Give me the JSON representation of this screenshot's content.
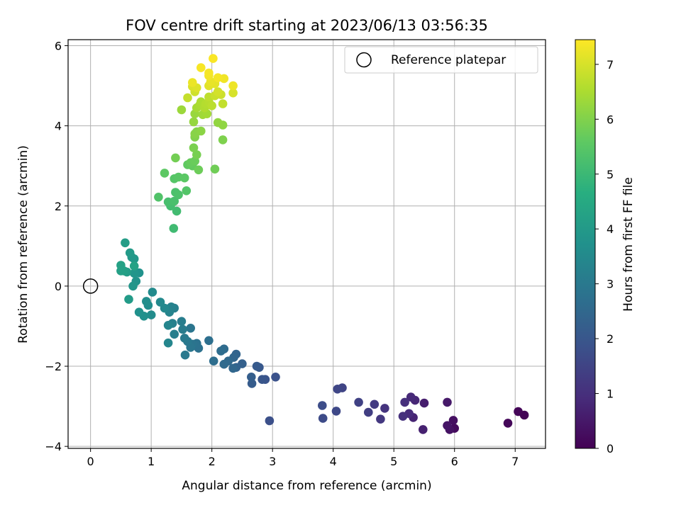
{
  "chart_data": {
    "type": "scatter",
    "title": "FOV centre drift starting at 2023/06/13 03:56:35",
    "xlabel": "Angular distance from reference (arcmin)",
    "ylabel": "Rotation from reference (arcmin)",
    "xlim": [
      -0.37,
      7.5
    ],
    "ylim": [
      -4.05,
      6.15
    ],
    "x_ticks": [
      0,
      1,
      2,
      3,
      4,
      5,
      6,
      7
    ],
    "y_ticks": [
      -4,
      -2,
      0,
      2,
      4,
      6
    ],
    "grid": true,
    "legend": {
      "placement": "top-right",
      "entries": [
        "Reference platepar"
      ]
    },
    "reference_point": {
      "x": 0,
      "y": 0,
      "marker": "open-circle",
      "label": "Reference platepar"
    },
    "colorbar": {
      "label": "Hours from first FF file",
      "min": 0,
      "max": 7.45,
      "ticks": [
        0,
        1,
        2,
        3,
        4,
        5,
        6,
        7
      ],
      "colormap": "viridis"
    },
    "points": [
      [
        7.15,
        -3.22,
        0.04
      ],
      [
        7.05,
        -3.13,
        0.08
      ],
      [
        6.88,
        -3.42,
        0.12
      ],
      [
        6.0,
        -3.55,
        0.22
      ],
      [
        5.98,
        -3.35,
        0.3
      ],
      [
        5.92,
        -3.58,
        0.36
      ],
      [
        5.88,
        -3.48,
        0.42
      ],
      [
        5.88,
        -2.9,
        0.5
      ],
      [
        5.5,
        -2.92,
        0.6
      ],
      [
        5.48,
        -3.58,
        0.68
      ],
      [
        5.32,
        -3.28,
        0.74
      ],
      [
        5.35,
        -2.85,
        0.8
      ],
      [
        5.28,
        -2.77,
        0.86
      ],
      [
        5.25,
        -3.18,
        0.92
      ],
      [
        5.18,
        -2.9,
        0.98
      ],
      [
        5.15,
        -3.25,
        1.04
      ],
      [
        4.85,
        -3.05,
        1.12
      ],
      [
        4.78,
        -3.32,
        1.2
      ],
      [
        4.68,
        -2.95,
        1.28
      ],
      [
        4.58,
        -3.15,
        1.36
      ],
      [
        4.42,
        -2.9,
        1.44
      ],
      [
        4.15,
        -2.54,
        1.5
      ],
      [
        4.07,
        -2.57,
        1.56
      ],
      [
        4.05,
        -3.12,
        1.62
      ],
      [
        3.83,
        -3.3,
        1.68
      ],
      [
        3.82,
        -2.98,
        1.74
      ],
      [
        2.95,
        -3.36,
        1.8
      ],
      [
        3.05,
        -2.27,
        1.86
      ],
      [
        2.88,
        -2.33,
        1.92
      ],
      [
        2.83,
        -2.33,
        1.98
      ],
      [
        2.78,
        -2.03,
        2.04
      ],
      [
        2.74,
        -2.0,
        2.1
      ],
      [
        2.66,
        -2.43,
        2.16
      ],
      [
        2.65,
        -2.27,
        2.22
      ],
      [
        2.5,
        -1.94,
        2.28
      ],
      [
        2.4,
        -2.03,
        2.34
      ],
      [
        2.4,
        -1.7,
        2.4
      ],
      [
        2.36,
        -1.78,
        2.44
      ],
      [
        2.35,
        -2.05,
        2.48
      ],
      [
        2.27,
        -1.87,
        2.52
      ],
      [
        2.2,
        -1.95,
        2.56
      ],
      [
        2.2,
        -1.57,
        2.6
      ],
      [
        2.15,
        -1.62,
        2.64
      ],
      [
        2.03,
        -1.87,
        2.68
      ],
      [
        1.95,
        -1.36,
        2.72
      ],
      [
        1.78,
        -1.55,
        2.76
      ],
      [
        1.75,
        -1.43,
        2.8
      ],
      [
        1.68,
        -1.45,
        2.84
      ],
      [
        1.65,
        -1.05,
        2.88
      ],
      [
        1.65,
        -1.53,
        2.92
      ],
      [
        1.6,
        -1.38,
        2.96
      ],
      [
        1.56,
        -1.72,
        3.0
      ],
      [
        1.55,
        -1.3,
        3.04
      ],
      [
        1.52,
        -1.08,
        3.08
      ],
      [
        1.5,
        -0.88,
        3.12
      ],
      [
        1.38,
        -1.2,
        3.16
      ],
      [
        1.38,
        -0.55,
        3.2
      ],
      [
        1.35,
        -0.93,
        3.24
      ],
      [
        1.33,
        -0.52,
        3.28
      ],
      [
        1.3,
        -0.65,
        3.32
      ],
      [
        1.28,
        -0.98,
        3.36
      ],
      [
        1.28,
        -1.42,
        3.4
      ],
      [
        1.22,
        -0.55,
        3.44
      ],
      [
        1.15,
        -0.4,
        3.48
      ],
      [
        1.02,
        -0.15,
        3.52
      ],
      [
        1.0,
        -0.72,
        3.56
      ],
      [
        0.95,
        -0.48,
        3.6
      ],
      [
        0.92,
        -0.38,
        3.64
      ],
      [
        0.88,
        -0.75,
        3.68
      ],
      [
        0.8,
        -0.65,
        3.72
      ],
      [
        0.8,
        0.33,
        3.76
      ],
      [
        0.75,
        0.12,
        3.8
      ],
      [
        0.72,
        0.32,
        3.84
      ],
      [
        0.7,
        0.0,
        3.88
      ],
      [
        0.72,
        0.68,
        3.92
      ],
      [
        0.68,
        0.72,
        3.96
      ],
      [
        0.65,
        0.83,
        4.0
      ],
      [
        0.63,
        -0.33,
        4.04
      ],
      [
        0.6,
        0.35,
        4.08
      ],
      [
        0.57,
        1.08,
        4.12
      ],
      [
        0.55,
        0.38,
        4.16
      ],
      [
        0.5,
        0.38,
        4.2
      ],
      [
        0.5,
        0.52,
        4.24
      ],
      [
        0.72,
        0.5,
        4.28
      ],
      [
        1.37,
        1.44,
        5.08
      ],
      [
        1.42,
        1.87,
        5.12
      ],
      [
        1.32,
        2.0,
        5.16
      ],
      [
        1.28,
        2.1,
        5.2
      ],
      [
        1.38,
        2.12,
        5.24
      ],
      [
        1.4,
        2.34,
        5.28
      ],
      [
        1.45,
        2.28,
        5.32
      ],
      [
        1.12,
        2.22,
        5.36
      ],
      [
        1.58,
        2.38,
        5.4
      ],
      [
        1.38,
        2.68,
        5.44
      ],
      [
        1.45,
        2.72,
        5.48
      ],
      [
        1.55,
        2.7,
        5.52
      ],
      [
        1.22,
        2.82,
        5.56
      ],
      [
        1.6,
        3.03,
        5.6
      ],
      [
        1.68,
        3.0,
        5.64
      ],
      [
        1.65,
        3.08,
        5.68
      ],
      [
        1.72,
        3.12,
        5.72
      ],
      [
        1.78,
        2.9,
        5.76
      ],
      [
        2.05,
        2.92,
        5.8
      ],
      [
        1.4,
        3.2,
        5.84
      ],
      [
        1.75,
        3.28,
        5.88
      ],
      [
        1.7,
        3.45,
        5.92
      ],
      [
        2.18,
        3.65,
        5.96
      ],
      [
        1.72,
        3.72,
        6.0
      ],
      [
        1.75,
        3.85,
        6.04
      ],
      [
        1.72,
        3.8,
        6.08
      ],
      [
        1.82,
        3.87,
        6.12
      ],
      [
        2.18,
        4.02,
        6.16
      ],
      [
        2.1,
        4.08,
        6.2
      ],
      [
        1.7,
        4.1,
        6.24
      ],
      [
        1.72,
        4.3,
        6.28
      ],
      [
        1.5,
        4.4,
        6.32
      ],
      [
        1.85,
        4.28,
        6.36
      ],
      [
        1.92,
        4.3,
        6.4
      ],
      [
        1.75,
        4.45,
        6.44
      ],
      [
        1.8,
        4.52,
        6.48
      ],
      [
        1.82,
        4.6,
        6.52
      ],
      [
        1.88,
        4.45,
        6.56
      ],
      [
        1.9,
        4.55,
        6.6
      ],
      [
        1.95,
        4.6,
        6.64
      ],
      [
        2.0,
        4.5,
        6.68
      ],
      [
        1.95,
        4.72,
        6.72
      ],
      [
        2.18,
        4.55,
        6.76
      ],
      [
        1.6,
        4.7,
        6.8
      ],
      [
        2.05,
        4.75,
        6.84
      ],
      [
        2.15,
        4.78,
        6.88
      ],
      [
        1.72,
        4.85,
        6.92
      ],
      [
        2.1,
        4.85,
        6.96
      ],
      [
        2.35,
        4.82,
        7.0
      ],
      [
        1.68,
        4.98,
        7.04
      ],
      [
        1.75,
        4.95,
        7.08
      ],
      [
        1.95,
        5.0,
        7.12
      ],
      [
        2.05,
        5.05,
        7.16
      ],
      [
        1.98,
        5.1,
        7.2
      ],
      [
        1.68,
        5.08,
        7.24
      ],
      [
        2.35,
        5.0,
        7.28
      ],
      [
        2.2,
        5.18,
        7.3
      ],
      [
        1.95,
        5.25,
        7.32
      ],
      [
        2.1,
        5.2,
        7.34
      ],
      [
        1.95,
        5.32,
        7.36
      ],
      [
        1.82,
        5.45,
        7.38
      ],
      [
        2.02,
        5.68,
        7.4
      ]
    ]
  }
}
